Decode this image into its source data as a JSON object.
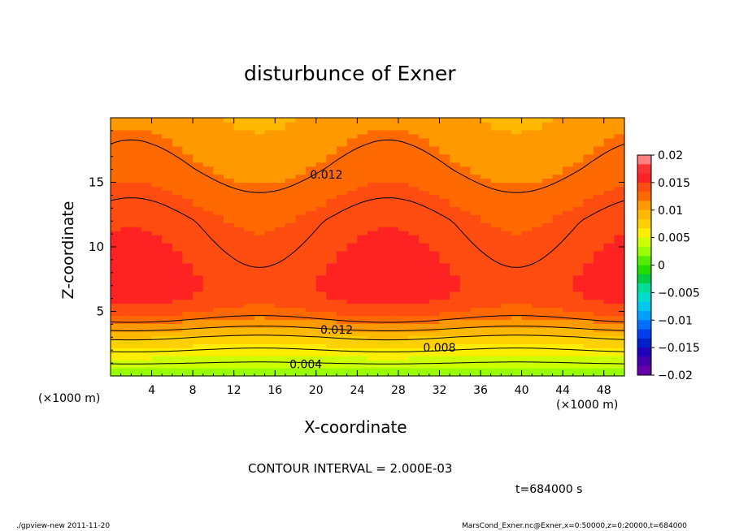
{
  "chart_data": {
    "type": "heatmap",
    "title": "disturbunce of Exner",
    "xlabel": "X-coordinate",
    "ylabel": "Z-coordinate",
    "x_unit_left": "(×1000 m)",
    "x_unit_right": "(×1000 m)",
    "xlim": [
      0,
      50
    ],
    "ylim": [
      0,
      20
    ],
    "x_ticks": [
      4,
      8,
      12,
      16,
      20,
      24,
      28,
      32,
      36,
      40,
      44,
      48
    ],
    "x_tick_labels": [
      "4",
      "8",
      "12",
      "16",
      "20",
      "24",
      "28",
      "32",
      "36",
      "40",
      "44",
      "48"
    ],
    "y_ticks": [
      5,
      10,
      15
    ],
    "y_tick_labels": [
      "5",
      "10",
      "15"
    ],
    "colorbar": {
      "levels": [
        0.02,
        0.015,
        0.01,
        0.005,
        0,
        -0.005,
        -0.01,
        -0.015,
        -0.02
      ],
      "labels": [
        "0.02",
        "0.015",
        "0.01",
        "0.005",
        "0",
        "−0.005",
        "−0.01",
        "−0.015",
        "−0.02"
      ],
      "colors_top_to_bottom": [
        "#ff7f7f",
        "#ff3333",
        "#ff2222",
        "#ff4d11",
        "#ff6a00",
        "#ff9900",
        "#ffb800",
        "#ffd000",
        "#ffee00",
        "#ccff00",
        "#99ff00",
        "#55ee00",
        "#22dd00",
        "#00cc44",
        "#00dd99",
        "#00ddcc",
        "#00c8ee",
        "#00a0ff",
        "#0070ff",
        "#0040ee",
        "#0020cc",
        "#2200bb",
        "#4400aa",
        "#6600aa"
      ]
    },
    "contour_labels": [
      "0.012",
      "0.012",
      "0.008",
      "0.004"
    ],
    "contour_interval_text": "CONTOUR INTERVAL = 2.000E-03",
    "time_text": "t=684000 s",
    "approx_profile": {
      "z": [
        0,
        1,
        2,
        3,
        4,
        5,
        6,
        7,
        8,
        10,
        12,
        14,
        16,
        18,
        20
      ],
      "value": [
        0.002,
        0.004,
        0.006,
        0.008,
        0.011,
        0.0135,
        0.0148,
        0.0152,
        0.015,
        0.0145,
        0.014,
        0.013,
        0.012,
        0.0112,
        0.0105
      ]
    }
  },
  "footer": {
    "left": "./gpview-new  2011-11-20",
    "right": "MarsCond_Exner.nc@Exner,x=0:50000,z=0:20000,t=684000"
  }
}
